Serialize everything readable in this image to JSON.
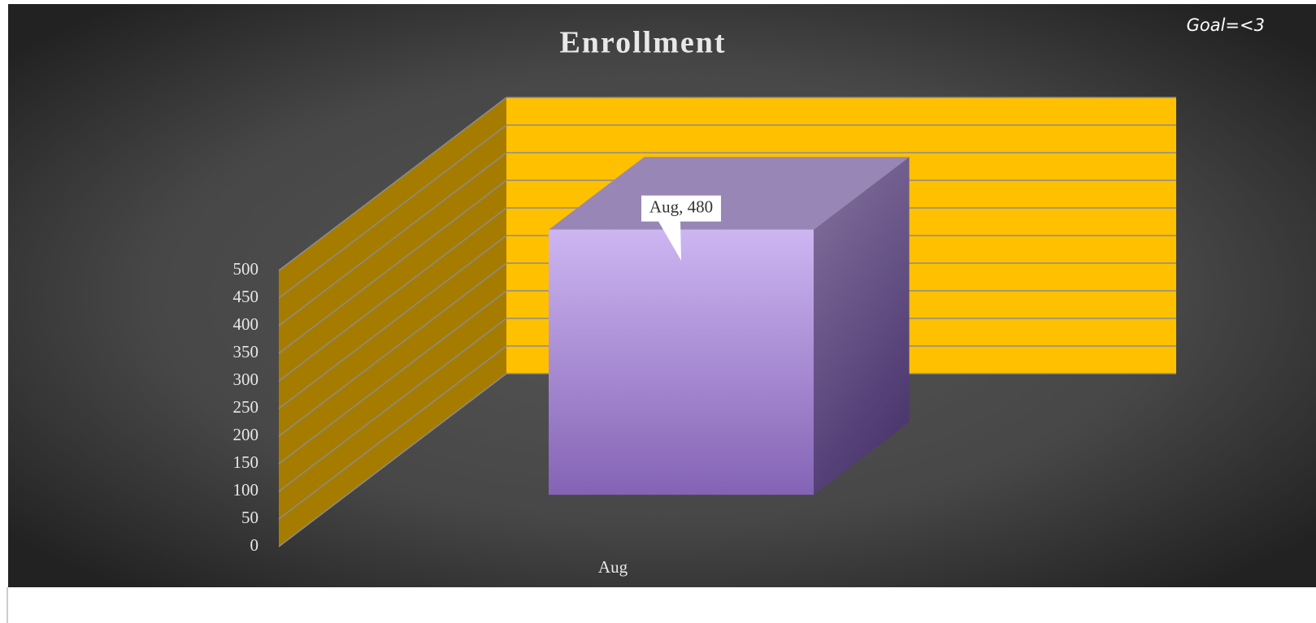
{
  "chart_data": {
    "type": "bar3d",
    "title": "Enrollment",
    "annotation": "Goal=<3",
    "categories": [
      "Aug"
    ],
    "values": [
      480
    ],
    "value_labels": [
      "Aug, 480"
    ],
    "color": "#a88ad6",
    "ylim": [
      0,
      500
    ],
    "yticks": [
      0,
      50,
      100,
      150,
      200,
      250,
      300,
      350,
      400,
      450,
      500
    ],
    "grid": true
  }
}
